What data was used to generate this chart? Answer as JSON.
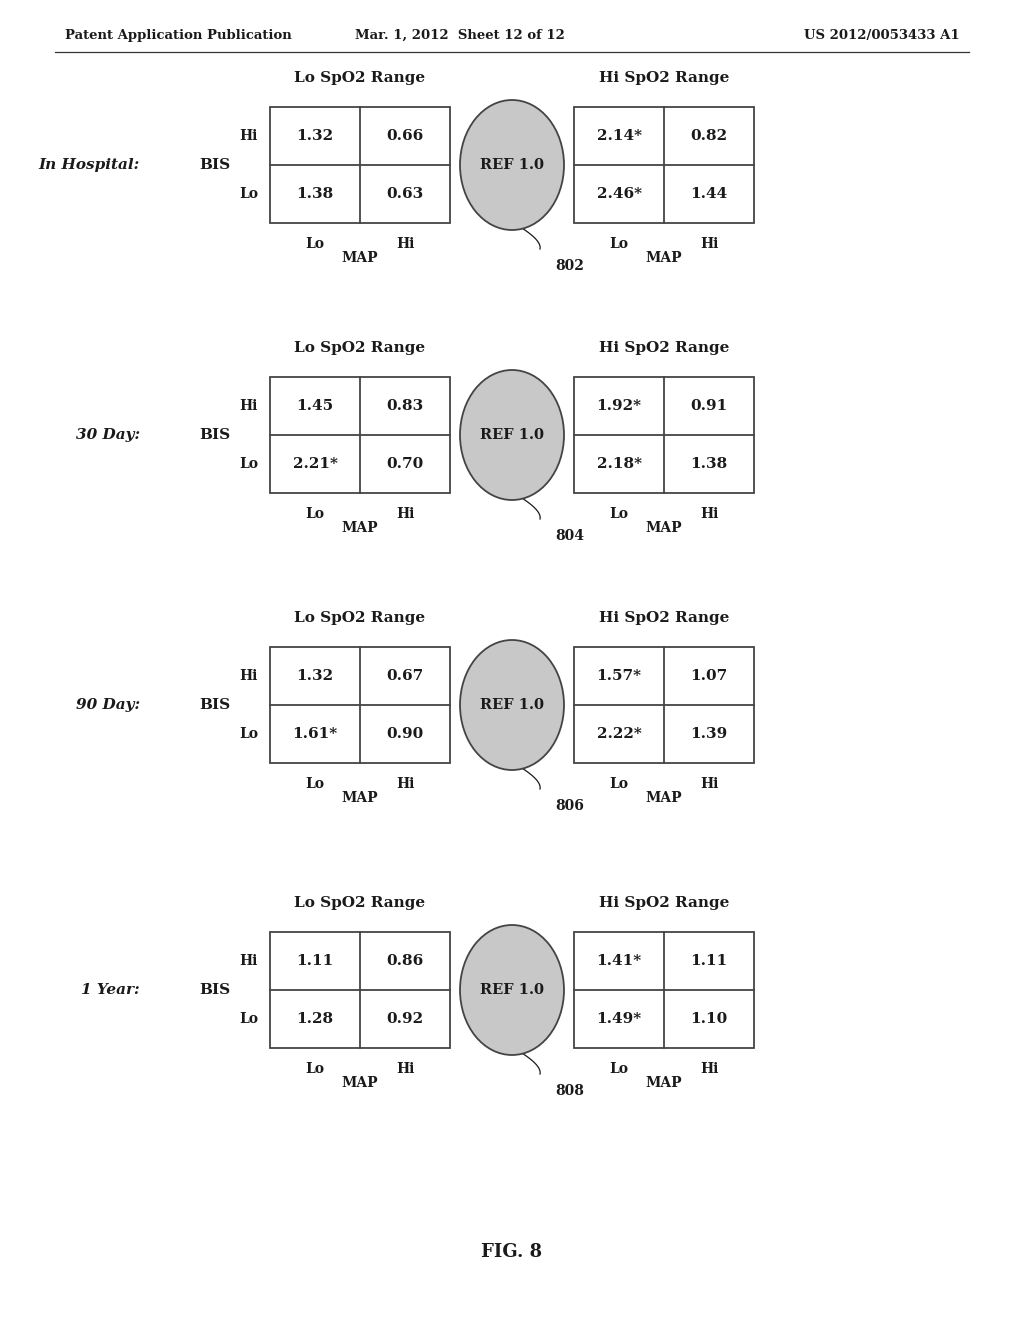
{
  "header_left": "Patent Application Publication",
  "header_mid": "Mar. 1, 2012  Sheet 12 of 12",
  "header_right": "US 2012/0053433 A1",
  "footer": "FIG. 8",
  "panels": [
    {
      "label": "In Hospital:",
      "ref_id": "802",
      "lo_spo2_label": "Lo SpO2 Range",
      "hi_spo2_label": "Hi SpO2 Range",
      "bis_label": "BIS",
      "map_label": "MAP",
      "hi_label": "Hi",
      "lo_label": "Lo",
      "cells": {
        "lo_hi_lo": "1.32",
        "lo_hi_hi": "0.66",
        "lo_lo_lo": "1.38",
        "lo_lo_hi": "0.63",
        "hi_hi_lo": "2.14*",
        "hi_hi_hi": "0.82",
        "hi_lo_lo": "2.46*",
        "hi_lo_hi": "1.44"
      }
    },
    {
      "label": "30 Day:",
      "ref_id": "804",
      "lo_spo2_label": "Lo SpO2 Range",
      "hi_spo2_label": "Hi SpO2 Range",
      "bis_label": "BIS",
      "map_label": "MAP",
      "hi_label": "Hi",
      "lo_label": "Lo",
      "cells": {
        "lo_hi_lo": "1.45",
        "lo_hi_hi": "0.83",
        "lo_lo_lo": "2.21*",
        "lo_lo_hi": "0.70",
        "hi_hi_lo": "1.92*",
        "hi_hi_hi": "0.91",
        "hi_lo_lo": "2.18*",
        "hi_lo_hi": "1.38"
      }
    },
    {
      "label": "90 Day:",
      "ref_id": "806",
      "lo_spo2_label": "Lo SpO2 Range",
      "hi_spo2_label": "Hi SpO2 Range",
      "bis_label": "BIS",
      "map_label": "MAP",
      "hi_label": "Hi",
      "lo_label": "Lo",
      "cells": {
        "lo_hi_lo": "1.32",
        "lo_hi_hi": "0.67",
        "lo_lo_lo": "1.61*",
        "lo_lo_hi": "0.90",
        "hi_hi_lo": "1.57*",
        "hi_hi_hi": "1.07",
        "hi_lo_lo": "2.22*",
        "hi_lo_hi": "1.39"
      }
    },
    {
      "label": "1 Year:",
      "ref_id": "808",
      "lo_spo2_label": "Lo SpO2 Range",
      "hi_spo2_label": "Hi SpO2 Range",
      "bis_label": "BIS",
      "map_label": "MAP",
      "hi_label": "Hi",
      "lo_label": "Lo",
      "cells": {
        "lo_hi_lo": "1.11",
        "lo_hi_hi": "0.86",
        "lo_lo_lo": "1.28",
        "lo_lo_hi": "0.92",
        "hi_hi_lo": "1.41*",
        "hi_hi_hi": "1.11",
        "hi_lo_lo": "1.49*",
        "hi_lo_hi": "1.10"
      }
    }
  ],
  "bg_color": "#ffffff",
  "text_color": "#1a1a1a",
  "grid_color": "#444444",
  "circle_color": "#c8c8c8",
  "cell_font_size": 11,
  "label_font_size": 10,
  "header_font_size": 10
}
